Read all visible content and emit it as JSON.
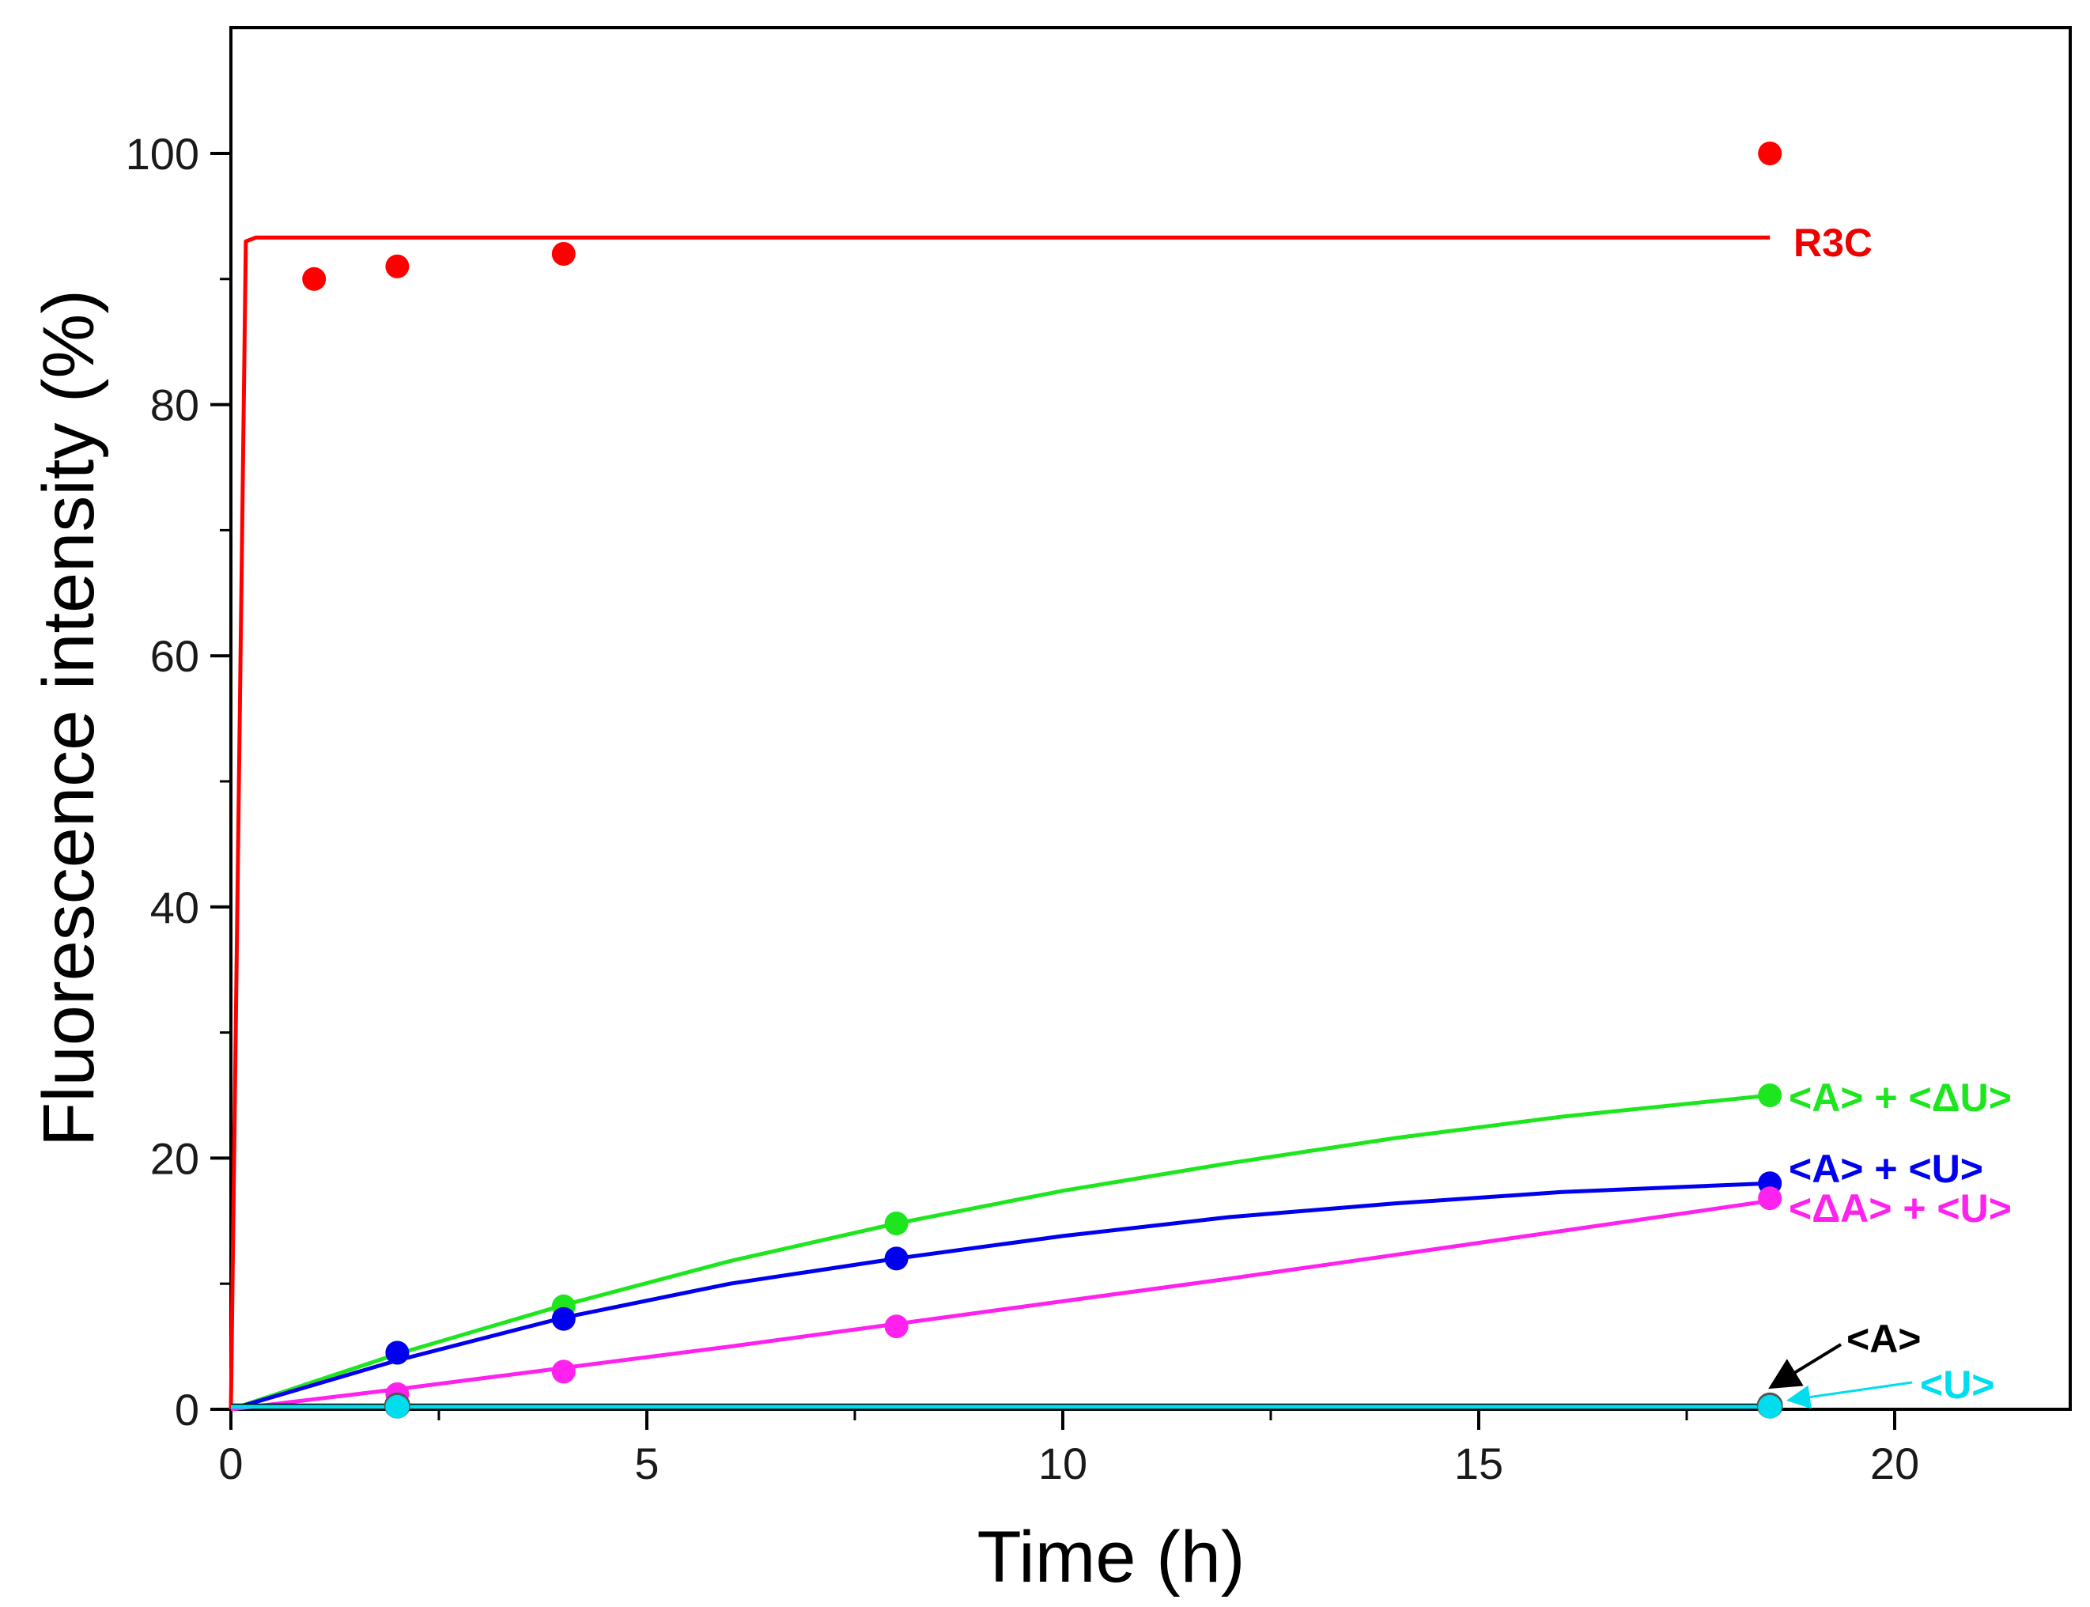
{
  "chart_data": {
    "type": "scatter",
    "title": "",
    "xlabel": "Time (h)",
    "ylabel": "Fluorescence intensity (%)",
    "xlim": [
      0,
      22
    ],
    "ylim": [
      0,
      110
    ],
    "x_ticks": [
      0,
      5,
      10,
      15,
      20
    ],
    "x_minor_ticks": [
      2.5,
      7.5,
      12.5,
      17.5
    ],
    "y_ticks": [
      0,
      20,
      40,
      60,
      80,
      100
    ],
    "y_minor_ticks": [
      10,
      30,
      50,
      70,
      90
    ],
    "grid": false,
    "series": [
      {
        "name": "R3C",
        "color": "#ff0000",
        "points": [
          [
            1,
            90
          ],
          [
            2,
            91
          ],
          [
            4,
            92
          ],
          [
            18.5,
            100
          ]
        ],
        "fit_line": [
          [
            0,
            0
          ],
          [
            0.18,
            93
          ],
          [
            0.3,
            93.3
          ],
          [
            18.5,
            93.3
          ]
        ]
      },
      {
        "name": "<A> + <ΔU>",
        "color": "#1ee61e",
        "points": [
          [
            2,
            4.5
          ],
          [
            4,
            8.2
          ],
          [
            8,
            14.8
          ],
          [
            18.5,
            25
          ]
        ],
        "fit_line": [
          [
            0,
            0
          ],
          [
            2,
            4.4
          ],
          [
            4,
            8.3
          ],
          [
            6,
            11.8
          ],
          [
            8,
            14.8
          ],
          [
            10,
            17.4
          ],
          [
            12,
            19.6
          ],
          [
            14,
            21.6
          ],
          [
            16,
            23.3
          ],
          [
            18.5,
            25
          ]
        ]
      },
      {
        "name": "<A> + <U>",
        "color": "#0000ee",
        "points": [
          [
            2,
            4.5
          ],
          [
            4,
            7.2
          ],
          [
            8,
            12
          ],
          [
            18.5,
            18
          ]
        ],
        "fit_line": [
          [
            0,
            0
          ],
          [
            2,
            3.9
          ],
          [
            4,
            7.3
          ],
          [
            6,
            10.0
          ],
          [
            8,
            12.0
          ],
          [
            10,
            13.8
          ],
          [
            12,
            15.3
          ],
          [
            14,
            16.4
          ],
          [
            16,
            17.3
          ],
          [
            18.5,
            18
          ]
        ]
      },
      {
        "name": "<ΔA> + <U>",
        "color": "#ff22ee",
        "points": [
          [
            2,
            1.2
          ],
          [
            4,
            3
          ],
          [
            8,
            6.6
          ],
          [
            18.5,
            16.8
          ]
        ],
        "fit_line": [
          [
            0,
            0
          ],
          [
            2,
            1.6
          ],
          [
            4,
            3.3
          ],
          [
            6,
            5.0
          ],
          [
            8,
            6.8
          ],
          [
            10,
            8.6
          ],
          [
            12,
            10.4
          ],
          [
            14,
            12.3
          ],
          [
            16,
            14.2
          ],
          [
            18.5,
            16.6
          ]
        ]
      },
      {
        "name": "<A>",
        "color": "#000000",
        "points": [
          [
            2,
            0.3
          ],
          [
            18.5,
            0.3
          ]
        ],
        "fit_line": [
          [
            0,
            0.3
          ],
          [
            18.5,
            0.3
          ]
        ]
      },
      {
        "name": "<U>",
        "color": "#00ddee",
        "points": [
          [
            2,
            0.2
          ],
          [
            18.5,
            0.2
          ]
        ],
        "fit_line": [
          [
            0,
            0.2
          ],
          [
            18.5,
            0.2
          ]
        ]
      }
    ],
    "annotations": [
      {
        "text": "R3C",
        "color": "#ee0000"
      },
      {
        "text": "<A> + <ΔU>",
        "color": "#1ee61e"
      },
      {
        "text": "<A> + <U>",
        "color": "#0000ee"
      },
      {
        "text": "<ΔA> + <U>",
        "color": "#ff22ee"
      },
      {
        "text": "<A>",
        "color": "#000000",
        "arrow": true
      },
      {
        "text": "<U>",
        "color": "#00ddee",
        "arrow": true
      }
    ]
  }
}
